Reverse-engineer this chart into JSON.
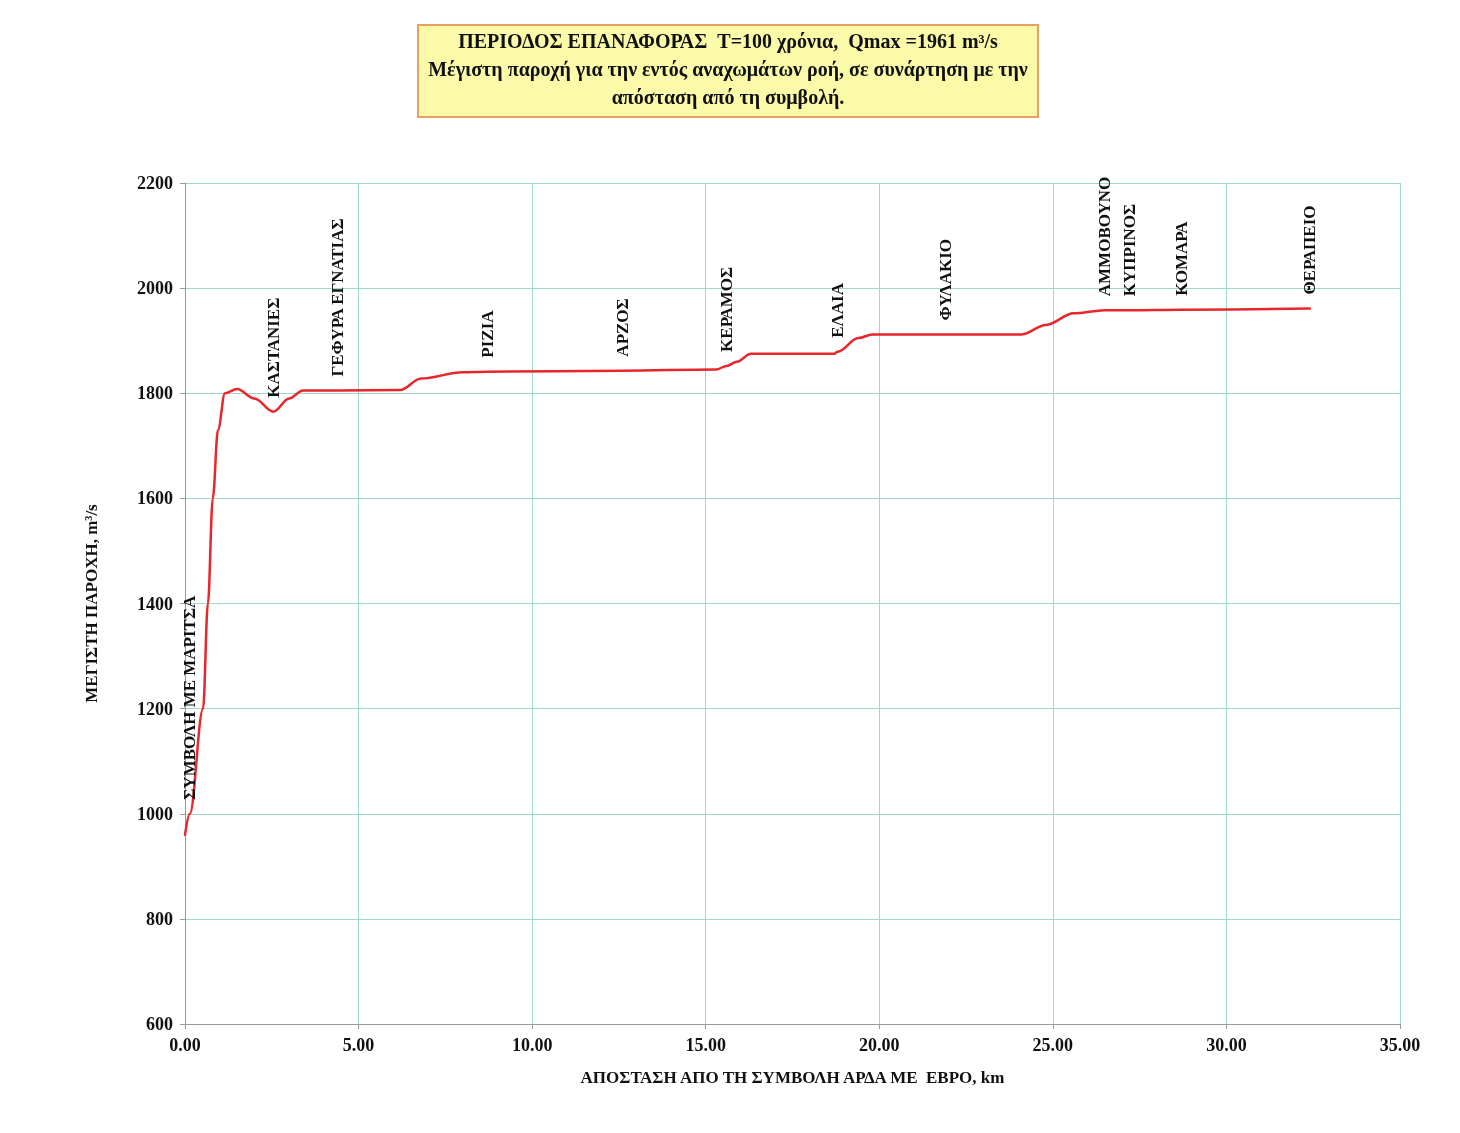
{
  "chart_data": {
    "type": "line",
    "title": "ΠΕΡΙΟΔΟΣ ΕΠΑΝΑΦΟΡΑΣ  T=100 χρόνια,  Qmax =1961 m³/s",
    "subtitle": "Μέγιστη παροχή για την εντός αναχωμάτων ροή, σε συνάρτηση με την\nαπόσταση από τη συμβολή.",
    "xlabel": "ΑΠΟΣΤΑΣΗ ΑΠΟ ΤΗ ΣΥΜΒΟΛΗ ΑΡΔΑ ΜΕ  ΕΒΡΟ, km",
    "ylabel": "ΜΕΓΙΣΤΗ ΠΑΡΟΧΗ, m³/s",
    "x": [
      0,
      0.14,
      0.52,
      0.66,
      0.8,
      0.95,
      1.15,
      1.5,
      2.0,
      2.55,
      3.0,
      3.4,
      4.4,
      6.2,
      6.8,
      8.0,
      8.7,
      12.6,
      15.3,
      15.6,
      15.9,
      16.3,
      18.7,
      18.8,
      19.4,
      19.8,
      21.9,
      24.1,
      24.8,
      25.6,
      26.5,
      27.2,
      28.7,
      32.4
    ],
    "series": [
      {
        "color": "#e8262b",
        "values": [
          960,
          1000,
          1200,
          1400,
          1600,
          1730,
          1800,
          1808,
          1790,
          1765,
          1790,
          1805,
          1805,
          1806,
          1828,
          1840,
          1841,
          1843,
          1845,
          1852,
          1860,
          1875,
          1875,
          1879,
          1905,
          1912,
          1912,
          1912,
          1930,
          1952,
          1958,
          1958,
          1959,
          1961
        ]
      }
    ],
    "xlim": [
      0,
      35
    ],
    "xticks": [
      {
        "value": 0,
        "label": "0.00"
      },
      {
        "value": 5,
        "label": "5.00"
      },
      {
        "value": 10,
        "label": "10.00"
      },
      {
        "value": 15,
        "label": "15.00"
      },
      {
        "value": 20,
        "label": "20.00"
      },
      {
        "value": 25,
        "label": "25.00"
      },
      {
        "value": 30,
        "label": "30.00"
      },
      {
        "value": 35,
        "label": "35.00"
      }
    ],
    "ylim": [
      600,
      2200
    ],
    "yticks": [
      600,
      800,
      1000,
      1200,
      1400,
      1600,
      1800,
      2000,
      2200
    ],
    "grid": true,
    "marker": "none",
    "line_style": "solid",
    "annotations": [
      {
        "text": "ΣΥΜΒΟΛΗ ΜΕ ΜΑΡΙΤΣΑ",
        "x": 0.14,
        "y": 1000
      },
      {
        "text": "ΚΑΣΤΑΝΙΕΣ",
        "x": 2.55,
        "y": 1765
      },
      {
        "text": "ΓΕΦΥΡΑ ΕΓΝΑΤΙΑΣ",
        "x": 4.4,
        "y": 1805
      },
      {
        "text": "ΡΙΖΙΑ",
        "x": 8.7,
        "y": 1841
      },
      {
        "text": "ΑΡΖΟΣ",
        "x": 12.6,
        "y": 1843
      },
      {
        "text": "ΚΕΡΑΜΟΣ",
        "x": 15.6,
        "y": 1852
      },
      {
        "text": "ΕΛΑΙΑ",
        "x": 18.8,
        "y": 1879
      },
      {
        "text": "ΦΥΛΑΚΙΟ",
        "x": 21.9,
        "y": 1912
      },
      {
        "text": "ΑΜΜΟΒΟΥΝΟ",
        "x": 26.5,
        "y": 1958
      },
      {
        "text": "ΚΥΠΡΙΝΟΣ",
        "x": 27.2,
        "y": 1958
      },
      {
        "text": "ΚΟΜΑΡΑ",
        "x": 28.7,
        "y": 1959
      },
      {
        "text": "ΘΕΡΑΠΕΙΟ",
        "x": 32.4,
        "y": 1961
      }
    ]
  }
}
